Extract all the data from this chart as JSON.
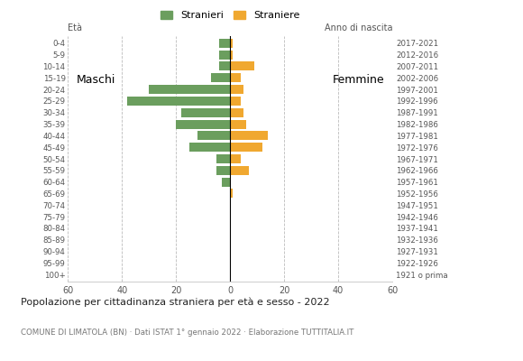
{
  "age_groups": [
    "100+",
    "95-99",
    "90-94",
    "85-89",
    "80-84",
    "75-79",
    "70-74",
    "65-69",
    "60-64",
    "55-59",
    "50-54",
    "45-49",
    "40-44",
    "35-39",
    "30-34",
    "25-29",
    "20-24",
    "15-19",
    "10-14",
    "5-9",
    "0-4"
  ],
  "birth_years": [
    "1921 o prima",
    "1922-1926",
    "1927-1931",
    "1932-1936",
    "1937-1941",
    "1942-1946",
    "1947-1951",
    "1952-1956",
    "1957-1961",
    "1962-1966",
    "1967-1971",
    "1972-1976",
    "1977-1981",
    "1982-1986",
    "1987-1991",
    "1992-1996",
    "1997-2001",
    "2002-2006",
    "2007-2011",
    "2012-2016",
    "2017-2021"
  ],
  "males": [
    0,
    0,
    0,
    0,
    0,
    0,
    0,
    0,
    3,
    5,
    5,
    15,
    12,
    20,
    18,
    38,
    30,
    7,
    4,
    4,
    4
  ],
  "females": [
    0,
    0,
    0,
    0,
    0,
    0,
    0,
    1,
    0,
    7,
    4,
    12,
    14,
    6,
    5,
    4,
    5,
    4,
    9,
    1,
    1
  ],
  "male_color": "#6b9e5e",
  "female_color": "#f0a830",
  "background_color": "#ffffff",
  "grid_color": "#bbbbbb",
  "title": "Popolazione per cittadinanza straniera per età e sesso - 2022",
  "subtitle": "COMUNE DI LIMATOLA (BN) · Dati ISTAT 1° gennaio 2022 · Elaborazione TUTTITALIA.IT",
  "eta_label": "Età",
  "anno_label": "Anno di nascita",
  "label_maschi": "Maschi",
  "label_femmine": "Femmine",
  "legend_males": "Stranieri",
  "legend_females": "Straniere",
  "xlim": 60,
  "xticks": [
    -60,
    -40,
    -20,
    0,
    20,
    40,
    60
  ],
  "xtick_labels": [
    "60",
    "40",
    "20",
    "0",
    "20",
    "40",
    "60"
  ]
}
